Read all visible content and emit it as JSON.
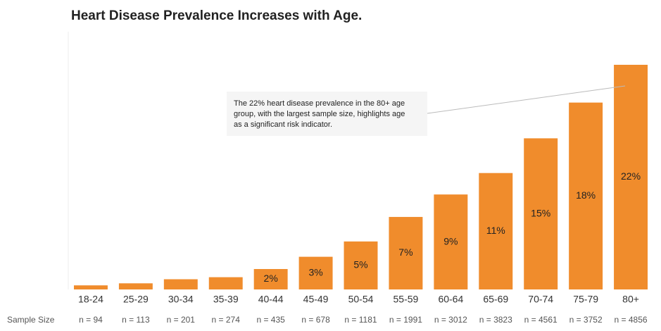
{
  "chart_data": {
    "type": "bar",
    "title": "Heart Disease Prevalence Increases with Age.",
    "categories": [
      "18-24",
      "25-29",
      "30-34",
      "35-39",
      "40-44",
      "45-49",
      "50-54",
      "55-59",
      "60-64",
      "65-69",
      "70-74",
      "75-79",
      "80+"
    ],
    "values": [
      0.4,
      0.6,
      1,
      1.2,
      2,
      3.2,
      4.7,
      7.1,
      9.3,
      11.4,
      14.8,
      18.3,
      22
    ],
    "value_labels": [
      null,
      null,
      null,
      null,
      "2%",
      "3%",
      "5%",
      "7%",
      "9%",
      "11%",
      "15%",
      "18%",
      "22%"
    ],
    "color": "#f08c2c",
    "ylim": [
      0,
      24
    ],
    "sample_size_label": "Sample Size",
    "sample_sizes": [
      "n = 94",
      "n = 113",
      "n = 201",
      "n = 274",
      "n = 435",
      "n = 678",
      "n = 1181",
      "n = 1991",
      "n = 3012",
      "n = 3823",
      "n = 4561",
      "n = 3752",
      "n = 4856"
    ],
    "annotation": {
      "lines": [
        "The 22% heart disease prevalence in the 80+ age",
        "group, with the largest sample size, highlights age",
        "as a significant risk indicator."
      ],
      "target": 12
    }
  }
}
